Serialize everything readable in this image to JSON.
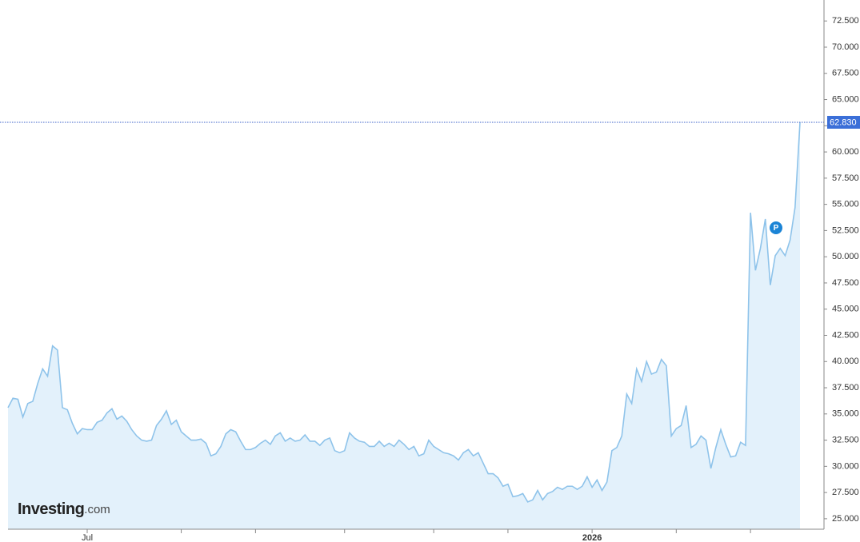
{
  "chart_data": {
    "type": "area",
    "color": "#8ec3ea",
    "fill": "#e3f1fb",
    "categories": [
      null,
      null,
      null,
      null,
      null,
      null,
      null,
      null,
      null,
      null,
      null,
      null,
      null,
      null,
      null,
      null,
      "Jul",
      null,
      null,
      null,
      null,
      null,
      null,
      null,
      null,
      null,
      null,
      null,
      null,
      null,
      null,
      null,
      null,
      null,
      null,
      null,
      null,
      null,
      null,
      null,
      null,
      null,
      null,
      null,
      null,
      null,
      null,
      null,
      null,
      null,
      null,
      null,
      null,
      null,
      null,
      null,
      null,
      null,
      null,
      null,
      null,
      null,
      null,
      null,
      null,
      null,
      null,
      null,
      null,
      null,
      null,
      null,
      null,
      null,
      null,
      null,
      null,
      null,
      null,
      null,
      null,
      null,
      null,
      null,
      null,
      null,
      null,
      null,
      null,
      null,
      null,
      null,
      null,
      null,
      null,
      null,
      null,
      null,
      null,
      null,
      null,
      null,
      null,
      null,
      null,
      null,
      null,
      null,
      null,
      null,
      null,
      null,
      null,
      null,
      null,
      null,
      null,
      null,
      "2026",
      null,
      null,
      null,
      null,
      null,
      null,
      null,
      null,
      null,
      null,
      null,
      null,
      null,
      null,
      null,
      null,
      null,
      null,
      null,
      null,
      null,
      null,
      null,
      null,
      null,
      null,
      null,
      null,
      null,
      null,
      null,
      null,
      null,
      null,
      null,
      null,
      null,
      null,
      null,
      null,
      null,
      null
    ],
    "values": [
      35.6,
      36.5,
      36.4,
      34.7,
      36.0,
      36.2,
      37.9,
      39.3,
      38.6,
      41.5,
      41.1,
      35.6,
      35.4,
      34.1,
      33.1,
      33.6,
      33.5,
      33.5,
      34.2,
      34.4,
      35.1,
      35.5,
      34.5,
      34.8,
      34.3,
      33.5,
      32.9,
      32.5,
      32.4,
      32.5,
      33.9,
      34.5,
      35.3,
      34.0,
      34.4,
      33.3,
      32.9,
      32.5,
      32.5,
      32.6,
      32.2,
      31.0,
      31.2,
      31.9,
      33.1,
      33.5,
      33.3,
      32.4,
      31.6,
      31.6,
      31.8,
      32.2,
      32.5,
      32.1,
      32.9,
      33.2,
      32.4,
      32.7,
      32.4,
      32.5,
      33.0,
      32.4,
      32.4,
      32.0,
      32.5,
      32.7,
      31.5,
      31.3,
      31.5,
      33.2,
      32.7,
      32.4,
      32.3,
      31.9,
      31.9,
      32.4,
      31.9,
      32.2,
      31.9,
      32.5,
      32.1,
      31.6,
      31.9,
      31.0,
      31.2,
      32.5,
      31.9,
      31.6,
      31.3,
      31.2,
      31.0,
      30.6,
      31.3,
      31.6,
      31.0,
      31.3,
      30.3,
      29.3,
      29.3,
      28.9,
      28.1,
      28.3,
      27.1,
      27.2,
      27.4,
      26.6,
      26.8,
      27.7,
      26.8,
      27.4,
      27.6,
      28.0,
      27.8,
      28.1,
      28.1,
      27.8,
      28.1,
      29.0,
      28.0,
      28.7,
      27.7,
      28.5,
      31.5,
      31.8,
      32.9,
      36.9,
      36.0,
      39.3,
      38.1,
      40.0,
      38.8,
      39.0,
      40.2,
      39.6,
      32.9,
      33.6,
      33.9,
      35.8,
      31.8,
      32.1,
      32.9,
      32.5,
      29.8,
      31.8,
      33.5,
      32.1,
      30.9,
      31.0,
      32.3,
      32.0,
      54.2,
      48.7,
      50.8,
      53.6,
      47.3,
      50.1,
      50.8,
      50.1,
      51.6,
      54.7,
      62.83
    ],
    "xticks": [
      16,
      35,
      50,
      68,
      86,
      101,
      118,
      135,
      150
    ],
    "ylim": [
      24,
      74.5
    ],
    "yticks": [
      {
        "value": 25,
        "label": "25.000"
      },
      {
        "value": 27.5,
        "label": "27.500"
      },
      {
        "value": 30,
        "label": "30.000"
      },
      {
        "value": 32.5,
        "label": "32.500"
      },
      {
        "value": 35,
        "label": "35.000"
      },
      {
        "value": 37.5,
        "label": "37.500"
      },
      {
        "value": 40,
        "label": "40.000"
      },
      {
        "value": 42.5,
        "label": "42.500"
      },
      {
        "value": 45,
        "label": "45.000"
      },
      {
        "value": 47.5,
        "label": "47.500"
      },
      {
        "value": 50,
        "label": "50.000"
      },
      {
        "value": 52.5,
        "label": "52.500"
      },
      {
        "value": 55,
        "label": "55.000"
      },
      {
        "value": 57.5,
        "label": "57.500"
      },
      {
        "value": 60,
        "label": "60.000"
      },
      {
        "value": 62.5,
        "label": "62.500"
      },
      {
        "value": 65,
        "label": "65.000"
      },
      {
        "value": 67.5,
        "label": "67.500"
      },
      {
        "value": 70,
        "label": "70.000"
      },
      {
        "value": 72.5,
        "label": "72.500"
      }
    ],
    "last_value": {
      "value": 62.83,
      "label": "62.830"
    },
    "marker_label": "P",
    "logo": {
      "name": "Investing",
      "suffix": ".com"
    }
  }
}
